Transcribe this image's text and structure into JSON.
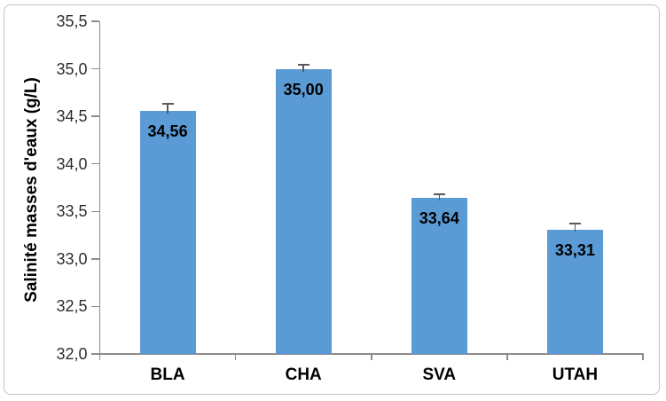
{
  "chart_data": {
    "type": "bar",
    "categories": [
      "BLA",
      "CHA",
      "SVA",
      "UTAH"
    ],
    "values": [
      34.56,
      35.0,
      33.64,
      33.31
    ],
    "value_labels": [
      "34,56",
      "35,00",
      "33,64",
      "33,31"
    ],
    "errors": [
      0.07,
      0.04,
      0.04,
      0.06
    ],
    "ylabel": "Salinité masses d'eaux (g/L)",
    "ylim": [
      32.0,
      35.5
    ],
    "ytick_step": 0.5,
    "ytick_labels": [
      "32,0",
      "32,5",
      "33,0",
      "33,5",
      "34,0",
      "34,5",
      "35,0",
      "35,5"
    ],
    "grid": false,
    "legend": "none",
    "colors": {
      "bar": "#5b9bd5",
      "axis": "#8c8c8c",
      "error_bar": "#595959",
      "text": "#000000",
      "tick_label": "#2e2e2e",
      "frame_border": "#c3c3c3",
      "background": "#ffffff"
    }
  }
}
